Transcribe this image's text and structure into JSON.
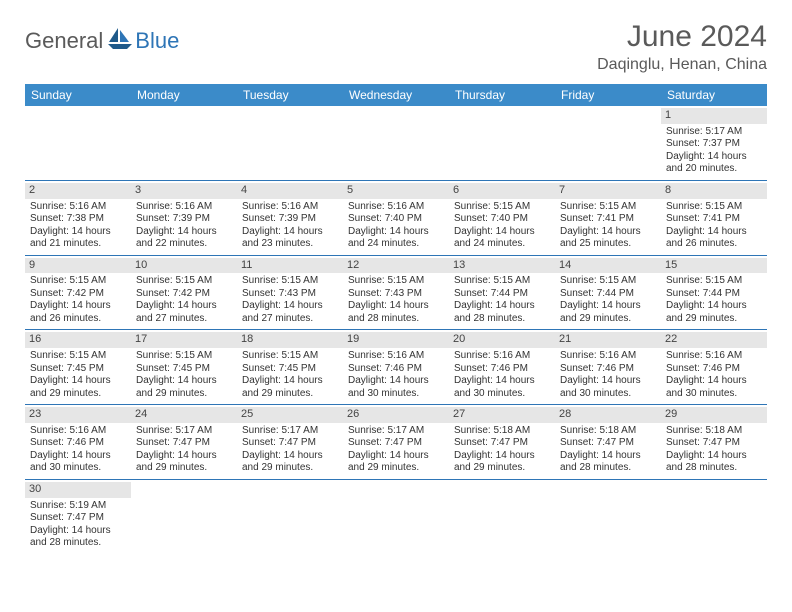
{
  "logo": {
    "text1": "General",
    "text2": "Blue"
  },
  "header": {
    "month": "June 2024",
    "location": "Daqinglu, Henan, China"
  },
  "colors": {
    "header_bg": "#3b8bc9",
    "header_text": "#ffffff",
    "rule": "#2e75b6",
    "daynum_bg": "#e6e6e6",
    "text": "#333333",
    "title_text": "#5a5a5a",
    "logo_gray": "#5a5a5a",
    "logo_blue": "#2e75b6",
    "sail_color": "#1f5a8a"
  },
  "weekdays": [
    "Sunday",
    "Monday",
    "Tuesday",
    "Wednesday",
    "Thursday",
    "Friday",
    "Saturday"
  ],
  "weeks": [
    [
      null,
      null,
      null,
      null,
      null,
      null,
      {
        "n": "1",
        "sr": "Sunrise: 5:17 AM",
        "ss": "Sunset: 7:37 PM",
        "d1": "Daylight: 14 hours",
        "d2": "and 20 minutes."
      }
    ],
    [
      {
        "n": "2",
        "sr": "Sunrise: 5:16 AM",
        "ss": "Sunset: 7:38 PM",
        "d1": "Daylight: 14 hours",
        "d2": "and 21 minutes."
      },
      {
        "n": "3",
        "sr": "Sunrise: 5:16 AM",
        "ss": "Sunset: 7:39 PM",
        "d1": "Daylight: 14 hours",
        "d2": "and 22 minutes."
      },
      {
        "n": "4",
        "sr": "Sunrise: 5:16 AM",
        "ss": "Sunset: 7:39 PM",
        "d1": "Daylight: 14 hours",
        "d2": "and 23 minutes."
      },
      {
        "n": "5",
        "sr": "Sunrise: 5:16 AM",
        "ss": "Sunset: 7:40 PM",
        "d1": "Daylight: 14 hours",
        "d2": "and 24 minutes."
      },
      {
        "n": "6",
        "sr": "Sunrise: 5:15 AM",
        "ss": "Sunset: 7:40 PM",
        "d1": "Daylight: 14 hours",
        "d2": "and 24 minutes."
      },
      {
        "n": "7",
        "sr": "Sunrise: 5:15 AM",
        "ss": "Sunset: 7:41 PM",
        "d1": "Daylight: 14 hours",
        "d2": "and 25 minutes."
      },
      {
        "n": "8",
        "sr": "Sunrise: 5:15 AM",
        "ss": "Sunset: 7:41 PM",
        "d1": "Daylight: 14 hours",
        "d2": "and 26 minutes."
      }
    ],
    [
      {
        "n": "9",
        "sr": "Sunrise: 5:15 AM",
        "ss": "Sunset: 7:42 PM",
        "d1": "Daylight: 14 hours",
        "d2": "and 26 minutes."
      },
      {
        "n": "10",
        "sr": "Sunrise: 5:15 AM",
        "ss": "Sunset: 7:42 PM",
        "d1": "Daylight: 14 hours",
        "d2": "and 27 minutes."
      },
      {
        "n": "11",
        "sr": "Sunrise: 5:15 AM",
        "ss": "Sunset: 7:43 PM",
        "d1": "Daylight: 14 hours",
        "d2": "and 27 minutes."
      },
      {
        "n": "12",
        "sr": "Sunrise: 5:15 AM",
        "ss": "Sunset: 7:43 PM",
        "d1": "Daylight: 14 hours",
        "d2": "and 28 minutes."
      },
      {
        "n": "13",
        "sr": "Sunrise: 5:15 AM",
        "ss": "Sunset: 7:44 PM",
        "d1": "Daylight: 14 hours",
        "d2": "and 28 minutes."
      },
      {
        "n": "14",
        "sr": "Sunrise: 5:15 AM",
        "ss": "Sunset: 7:44 PM",
        "d1": "Daylight: 14 hours",
        "d2": "and 29 minutes."
      },
      {
        "n": "15",
        "sr": "Sunrise: 5:15 AM",
        "ss": "Sunset: 7:44 PM",
        "d1": "Daylight: 14 hours",
        "d2": "and 29 minutes."
      }
    ],
    [
      {
        "n": "16",
        "sr": "Sunrise: 5:15 AM",
        "ss": "Sunset: 7:45 PM",
        "d1": "Daylight: 14 hours",
        "d2": "and 29 minutes."
      },
      {
        "n": "17",
        "sr": "Sunrise: 5:15 AM",
        "ss": "Sunset: 7:45 PM",
        "d1": "Daylight: 14 hours",
        "d2": "and 29 minutes."
      },
      {
        "n": "18",
        "sr": "Sunrise: 5:15 AM",
        "ss": "Sunset: 7:45 PM",
        "d1": "Daylight: 14 hours",
        "d2": "and 29 minutes."
      },
      {
        "n": "19",
        "sr": "Sunrise: 5:16 AM",
        "ss": "Sunset: 7:46 PM",
        "d1": "Daylight: 14 hours",
        "d2": "and 30 minutes."
      },
      {
        "n": "20",
        "sr": "Sunrise: 5:16 AM",
        "ss": "Sunset: 7:46 PM",
        "d1": "Daylight: 14 hours",
        "d2": "and 30 minutes."
      },
      {
        "n": "21",
        "sr": "Sunrise: 5:16 AM",
        "ss": "Sunset: 7:46 PM",
        "d1": "Daylight: 14 hours",
        "d2": "and 30 minutes."
      },
      {
        "n": "22",
        "sr": "Sunrise: 5:16 AM",
        "ss": "Sunset: 7:46 PM",
        "d1": "Daylight: 14 hours",
        "d2": "and 30 minutes."
      }
    ],
    [
      {
        "n": "23",
        "sr": "Sunrise: 5:16 AM",
        "ss": "Sunset: 7:46 PM",
        "d1": "Daylight: 14 hours",
        "d2": "and 30 minutes."
      },
      {
        "n": "24",
        "sr": "Sunrise: 5:17 AM",
        "ss": "Sunset: 7:47 PM",
        "d1": "Daylight: 14 hours",
        "d2": "and 29 minutes."
      },
      {
        "n": "25",
        "sr": "Sunrise: 5:17 AM",
        "ss": "Sunset: 7:47 PM",
        "d1": "Daylight: 14 hours",
        "d2": "and 29 minutes."
      },
      {
        "n": "26",
        "sr": "Sunrise: 5:17 AM",
        "ss": "Sunset: 7:47 PM",
        "d1": "Daylight: 14 hours",
        "d2": "and 29 minutes."
      },
      {
        "n": "27",
        "sr": "Sunrise: 5:18 AM",
        "ss": "Sunset: 7:47 PM",
        "d1": "Daylight: 14 hours",
        "d2": "and 29 minutes."
      },
      {
        "n": "28",
        "sr": "Sunrise: 5:18 AM",
        "ss": "Sunset: 7:47 PM",
        "d1": "Daylight: 14 hours",
        "d2": "and 28 minutes."
      },
      {
        "n": "29",
        "sr": "Sunrise: 5:18 AM",
        "ss": "Sunset: 7:47 PM",
        "d1": "Daylight: 14 hours",
        "d2": "and 28 minutes."
      }
    ],
    [
      {
        "n": "30",
        "sr": "Sunrise: 5:19 AM",
        "ss": "Sunset: 7:47 PM",
        "d1": "Daylight: 14 hours",
        "d2": "and 28 minutes."
      },
      null,
      null,
      null,
      null,
      null,
      null
    ]
  ]
}
